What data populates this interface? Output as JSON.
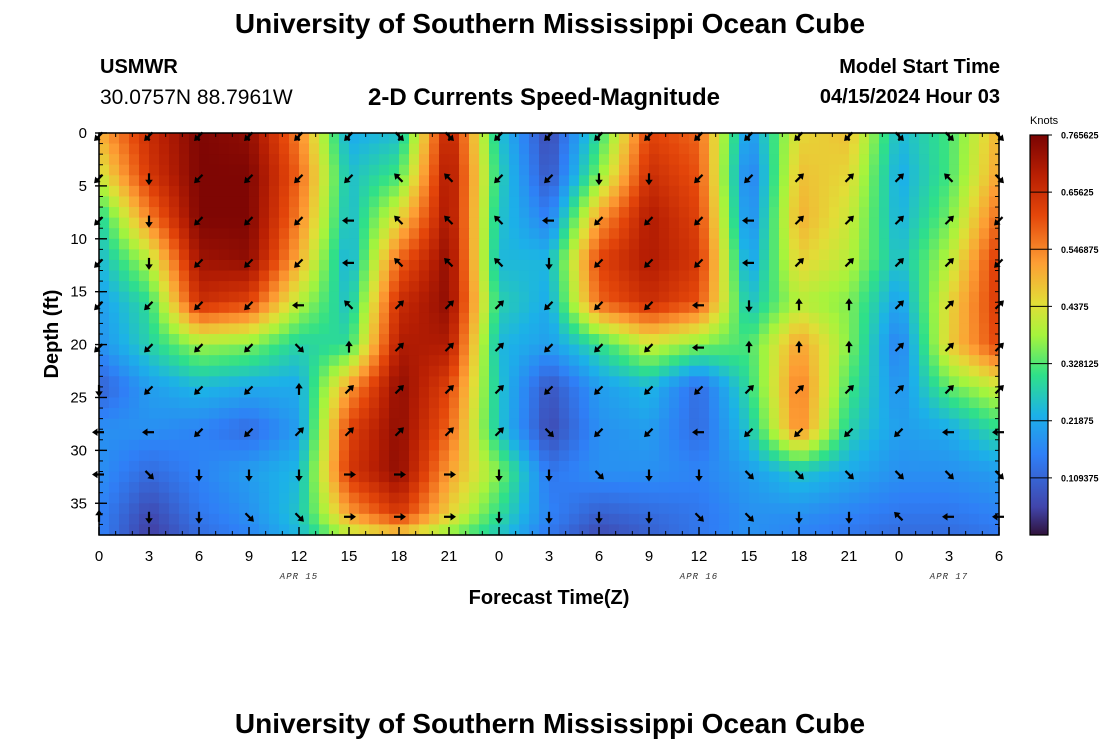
{
  "header": {
    "title": "University of Southern Mississippi Ocean Cube",
    "station": "USMWR",
    "coordinates": "30.0757N  88.7961W",
    "subtitle": "2-D Currents Speed-Magnitude",
    "model_start_label": "Model Start Time",
    "model_start_value": "04/15/2024 Hour 03"
  },
  "footer": {
    "title": "University of Southern Mississippi Ocean Cube"
  },
  "chart_data": {
    "type": "heatmap",
    "title": "2-D Currents Speed-Magnitude",
    "xlabel": "Forecast Time(Z)",
    "ylabel": "Depth (ft)",
    "x_hours_range": [
      0,
      54
    ],
    "ylim": [
      0,
      38
    ],
    "x_ticks": [
      {
        "h": 0,
        "label": "0"
      },
      {
        "h": 3,
        "label": "3"
      },
      {
        "h": 6,
        "label": "6"
      },
      {
        "h": 9,
        "label": "9"
      },
      {
        "h": 12,
        "label": "12"
      },
      {
        "h": 15,
        "label": "15"
      },
      {
        "h": 18,
        "label": "18"
      },
      {
        "h": 21,
        "label": "21"
      },
      {
        "h": 24,
        "label": "0"
      },
      {
        "h": 27,
        "label": "3"
      },
      {
        "h": 30,
        "label": "6"
      },
      {
        "h": 33,
        "label": "9"
      },
      {
        "h": 36,
        "label": "12"
      },
      {
        "h": 39,
        "label": "15"
      },
      {
        "h": 42,
        "label": "18"
      },
      {
        "h": 45,
        "label": "21"
      },
      {
        "h": 48,
        "label": "0"
      },
      {
        "h": 51,
        "label": "3"
      },
      {
        "h": 54,
        "label": "6"
      }
    ],
    "y_ticks": [
      {
        "v": 0,
        "label": "0"
      },
      {
        "v": 5,
        "label": "5"
      },
      {
        "v": 10,
        "label": "10"
      },
      {
        "v": 15,
        "label": "15"
      },
      {
        "v": 20,
        "label": "20"
      },
      {
        "v": 25,
        "label": "25"
      },
      {
        "v": 30,
        "label": "30"
      },
      {
        "v": 35,
        "label": "35"
      }
    ],
    "date_labels": [
      {
        "h": 12,
        "label": "APR 15"
      },
      {
        "h": 36,
        "label": "APR 16"
      },
      {
        "h": 51,
        "label": "APR 17"
      }
    ],
    "colorbar": {
      "unit": "Knots",
      "range": [
        0,
        0.765625
      ],
      "tick_labels": [
        "0.765625",
        "0.65625",
        "0.546875",
        "0.4375",
        "0.328125",
        "0.21875",
        "0.109375"
      ],
      "tick_values": [
        0.765625,
        0.65625,
        0.546875,
        0.4375,
        0.328125,
        0.21875,
        0.109375
      ]
    },
    "speed_grid": {
      "hours": [
        0,
        3,
        6,
        9,
        12,
        15,
        18,
        21,
        24,
        27,
        30,
        33,
        36,
        39,
        42,
        45,
        48,
        51,
        54
      ],
      "depths": [
        0,
        4,
        8,
        12,
        16,
        20,
        24,
        28,
        32,
        36,
        38
      ],
      "values": [
        [
          0.5,
          0.66,
          0.76,
          0.74,
          0.55,
          0.22,
          0.25,
          0.7,
          0.26,
          0.06,
          0.3,
          0.62,
          0.58,
          0.18,
          0.45,
          0.48,
          0.24,
          0.32,
          0.5
        ],
        [
          0.42,
          0.64,
          0.76,
          0.76,
          0.58,
          0.25,
          0.32,
          0.72,
          0.28,
          0.08,
          0.36,
          0.66,
          0.6,
          0.14,
          0.48,
          0.45,
          0.22,
          0.32,
          0.52
        ],
        [
          0.28,
          0.55,
          0.76,
          0.76,
          0.55,
          0.24,
          0.45,
          0.72,
          0.26,
          0.15,
          0.52,
          0.7,
          0.62,
          0.16,
          0.5,
          0.42,
          0.23,
          0.35,
          0.58
        ],
        [
          0.24,
          0.4,
          0.72,
          0.74,
          0.5,
          0.22,
          0.58,
          0.74,
          0.24,
          0.24,
          0.62,
          0.7,
          0.64,
          0.2,
          0.46,
          0.4,
          0.25,
          0.4,
          0.64
        ],
        [
          0.2,
          0.3,
          0.66,
          0.62,
          0.4,
          0.25,
          0.66,
          0.74,
          0.28,
          0.22,
          0.58,
          0.66,
          0.6,
          0.25,
          0.4,
          0.36,
          0.2,
          0.45,
          0.64
        ],
        [
          0.18,
          0.28,
          0.38,
          0.36,
          0.28,
          0.3,
          0.7,
          0.7,
          0.24,
          0.2,
          0.3,
          0.42,
          0.36,
          0.32,
          0.52,
          0.36,
          0.15,
          0.46,
          0.62
        ],
        [
          0.1,
          0.2,
          0.24,
          0.22,
          0.22,
          0.52,
          0.74,
          0.62,
          0.26,
          0.08,
          0.2,
          0.24,
          0.12,
          0.3,
          0.56,
          0.32,
          0.18,
          0.34,
          0.42
        ],
        [
          0.18,
          0.18,
          0.16,
          0.12,
          0.2,
          0.62,
          0.74,
          0.58,
          0.26,
          0.06,
          0.18,
          0.2,
          0.12,
          0.26,
          0.55,
          0.28,
          0.2,
          0.22,
          0.3
        ],
        [
          0.18,
          0.12,
          0.16,
          0.2,
          0.24,
          0.64,
          0.74,
          0.52,
          0.36,
          0.14,
          0.18,
          0.18,
          0.16,
          0.2,
          0.26,
          0.22,
          0.18,
          0.18,
          0.2
        ],
        [
          0.16,
          0.06,
          0.14,
          0.18,
          0.26,
          0.52,
          0.64,
          0.46,
          0.3,
          0.16,
          0.1,
          0.12,
          0.14,
          0.18,
          0.18,
          0.16,
          0.14,
          0.14,
          0.16
        ],
        [
          0.16,
          0.04,
          0.12,
          0.16,
          0.24,
          0.4,
          0.46,
          0.36,
          0.26,
          0.14,
          0.06,
          0.1,
          0.14,
          0.18,
          0.16,
          0.14,
          0.12,
          0.12,
          0.14
        ]
      ]
    },
    "vectors": {
      "hours": [
        0,
        3,
        6,
        9,
        12,
        15,
        18,
        21,
        24,
        27,
        30,
        33,
        36,
        39,
        42,
        45,
        48,
        51,
        54
      ],
      "depths": [
        0,
        4,
        8,
        12,
        16,
        20,
        24,
        28,
        32,
        36
      ],
      "direction_deg": [
        [
          135,
          135,
          135,
          135,
          135,
          135,
          45,
          45,
          135,
          135,
          135,
          135,
          135,
          135,
          135,
          135,
          45,
          45,
          45
        ],
        [
          135,
          90,
          135,
          135,
          135,
          135,
          225,
          225,
          135,
          135,
          90,
          90,
          135,
          135,
          315,
          315,
          315,
          225,
          45
        ],
        [
          135,
          90,
          135,
          135,
          135,
          180,
          225,
          225,
          225,
          180,
          135,
          135,
          135,
          180,
          315,
          315,
          315,
          315,
          135
        ],
        [
          135,
          90,
          135,
          135,
          135,
          180,
          225,
          225,
          225,
          90,
          135,
          135,
          135,
          180,
          315,
          315,
          315,
          315,
          135
        ],
        [
          135,
          135,
          135,
          135,
          180,
          225,
          315,
          315,
          315,
          135,
          135,
          135,
          180,
          90,
          270,
          270,
          315,
          315,
          315
        ],
        [
          135,
          135,
          135,
          135,
          45,
          270,
          315,
          315,
          315,
          135,
          135,
          135,
          180,
          270,
          270,
          270,
          315,
          315,
          315
        ],
        [
          90,
          135,
          135,
          135,
          270,
          315,
          315,
          315,
          315,
          135,
          135,
          135,
          135,
          315,
          315,
          315,
          315,
          315,
          315
        ],
        [
          180,
          180,
          135,
          135,
          315,
          315,
          315,
          315,
          315,
          45,
          135,
          135,
          180,
          135,
          135,
          135,
          135,
          180,
          180
        ],
        [
          180,
          45,
          90,
          90,
          90,
          0,
          0,
          0,
          90,
          90,
          45,
          90,
          90,
          45,
          45,
          45,
          45,
          45,
          45
        ],
        [
          270,
          90,
          90,
          45,
          45,
          0,
          0,
          0,
          90,
          90,
          90,
          90,
          45,
          45,
          90,
          90,
          225,
          180,
          180
        ]
      ]
    }
  }
}
